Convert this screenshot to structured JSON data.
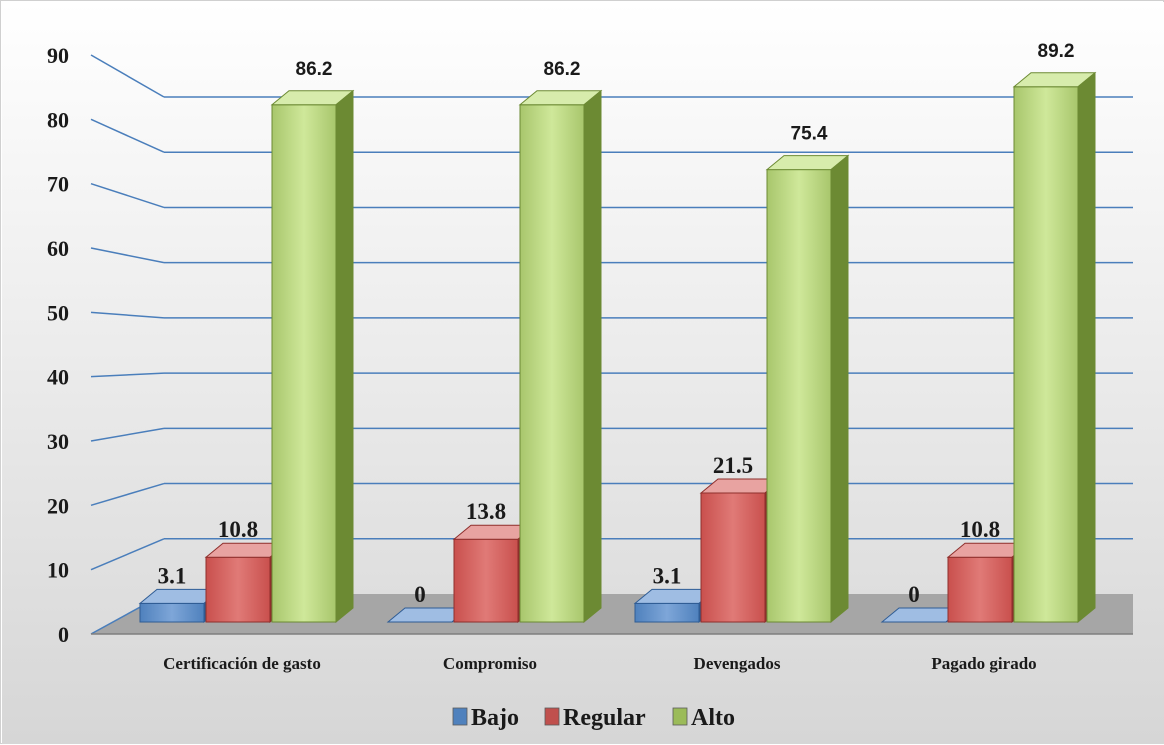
{
  "chart_data": {
    "type": "bar",
    "categories": [
      "Certificación de gasto",
      "Compromiso",
      "Devengados",
      "Pagado girado"
    ],
    "series": [
      {
        "name": "Bajo",
        "values": [
          3.1,
          0,
          3.1,
          0
        ],
        "color": "#4f81bd"
      },
      {
        "name": "Regular",
        "values": [
          10.8,
          13.8,
          21.5,
          10.8
        ],
        "color": "#c0504d"
      },
      {
        "name": "Alto",
        "values": [
          86.2,
          86.2,
          75.4,
          89.2
        ],
        "color": "#9bbb59"
      }
    ],
    "ylim": [
      0,
      90
    ],
    "yticks": [
      0,
      10,
      20,
      30,
      40,
      50,
      60,
      70,
      80,
      90
    ],
    "grid": true,
    "legend": "bottom",
    "three_d": true,
    "colors": {
      "gridline": "#4a7ebb",
      "floor": "#a6a6a6",
      "background_top": "#ffffff",
      "background_bottom": "#d9d9d9"
    }
  }
}
